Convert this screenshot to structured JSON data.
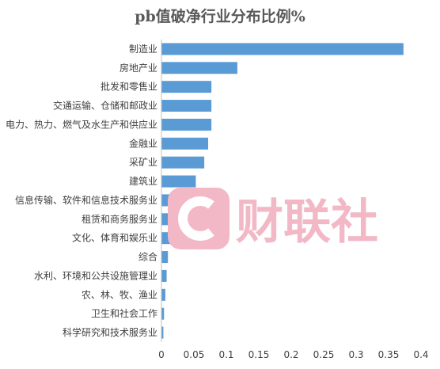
{
  "chart_data": {
    "type": "bar",
    "orientation": "horizontal",
    "title": "pb值破净行业分布比例%",
    "categories": [
      "制造业",
      "房地产业",
      "批发和零售业",
      "交通运输、仓储和邮政业",
      "电力、热力、燃气及水生产和供应业",
      "金融业",
      "采矿业",
      "建筑业",
      "信息传输、软件和信息技术服务业",
      "租赁和商务服务业",
      "文化、体育和娱乐业",
      "综合",
      "水利、环境和公共设施管理业",
      "农、林、牧、渔业",
      "卫生和社会工作",
      "科学研究和技术服务业"
    ],
    "values": [
      0.373,
      0.117,
      0.077,
      0.077,
      0.077,
      0.072,
      0.066,
      0.053,
      0.027,
      0.022,
      0.017,
      0.01,
      0.008,
      0.006,
      0.004,
      0.003
    ],
    "xlim": [
      0,
      0.4
    ],
    "xticks": [
      "0",
      "0.05",
      "0.1",
      "0.15",
      "0.2",
      "0.25",
      "0.3",
      "0.35",
      "0.4"
    ],
    "grid": false,
    "legend": "none",
    "bar_color": "#5b9bd5"
  },
  "watermark": {
    "text": "财联社",
    "color": "#f2b8c6"
  }
}
